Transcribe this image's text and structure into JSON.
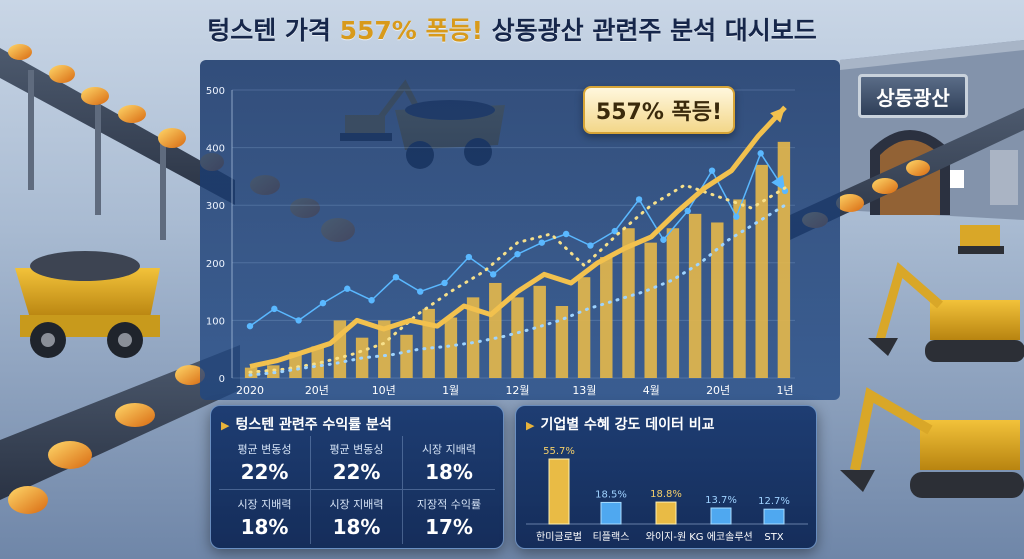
{
  "title": {
    "prefix": "텅스텐 가격 ",
    "highlight": "557% 폭등!",
    "suffix": " 상동광산 관련주 분석 대시보드"
  },
  "callout": "557% 폭등!",
  "mine_sign": "상동광산",
  "colors": {
    "bar_gold": "#e6b84a",
    "line_gold": "#f2c14e",
    "line_blue": "#5ab8ff",
    "panel": "#1a3a72"
  },
  "chart_data": [
    {
      "type": "bar",
      "x_labels": [
        "2020",
        "20년",
        "10년",
        "1월",
        "12월",
        "13월",
        "4월",
        "20년",
        "1년"
      ],
      "y_ticks": [
        0,
        100,
        200,
        300,
        400,
        500
      ],
      "ylim": [
        0,
        500
      ],
      "grid": true,
      "series": [
        {
          "kind": "bar",
          "values": [
            18,
            22,
            45,
            55,
            100,
            70,
            100,
            75,
            120,
            105,
            140,
            165,
            140,
            160,
            125,
            175,
            210,
            260,
            235,
            260,
            285,
            270,
            310,
            370,
            410
          ]
        },
        {
          "kind": "line",
          "values": [
            20,
            30,
            45,
            60,
            100,
            85,
            100,
            90,
            125,
            110,
            150,
            180,
            165,
            200,
            225,
            245,
            290,
            330,
            360,
            420,
            470
          ]
        },
        {
          "kind": "line",
          "values": [
            90,
            120,
            100,
            130,
            155,
            135,
            175,
            150,
            165,
            210,
            180,
            215,
            235,
            250,
            230,
            255,
            310,
            240,
            290,
            360,
            280,
            390,
            325
          ]
        },
        {
          "kind": "dotted",
          "values": [
            10,
            15,
            25,
            40,
            60,
            110,
            150,
            185,
            235,
            250,
            195,
            250,
            300,
            335,
            315,
            295,
            330
          ]
        },
        {
          "kind": "dotted",
          "values": [
            5,
            10,
            18,
            25,
            35,
            40,
            50,
            55,
            62,
            72,
            85,
            100,
            120,
            135,
            150,
            170,
            200,
            240,
            270,
            300
          ]
        }
      ]
    },
    {
      "type": "bar",
      "title": "기업별 수혜 강도 데이터 비교",
      "categories": [
        "한미글로벌",
        "티플랙스",
        "와이지-원",
        "KG 에코솔루션",
        "STX"
      ],
      "values": [
        55.7,
        18.5,
        18.8,
        13.7,
        12.7
      ],
      "value_labels": [
        "55.7%",
        "18.5%",
        "18.8%",
        "13.7%",
        "12.7%"
      ],
      "bar_colors": [
        "gold",
        "blue",
        "gold",
        "blue",
        "blue"
      ],
      "ylim": [
        0,
        60
      ]
    }
  ],
  "stats_card": {
    "title": "텅스텐 관련주 수익률 분석",
    "items": [
      {
        "label": "평균 변동성",
        "value": "22%"
      },
      {
        "label": "평균 변동싱",
        "value": "22%"
      },
      {
        "label": "시장 지배력",
        "value": "18%"
      },
      {
        "label": "시장 지배력",
        "value": "18%"
      },
      {
        "label": "시장 지배력",
        "value": "18%"
      },
      {
        "label": "지장적 수익률",
        "value": "17%"
      }
    ]
  },
  "compare_card": {
    "title": "기업별 수혜 강도 데이터 비교"
  }
}
